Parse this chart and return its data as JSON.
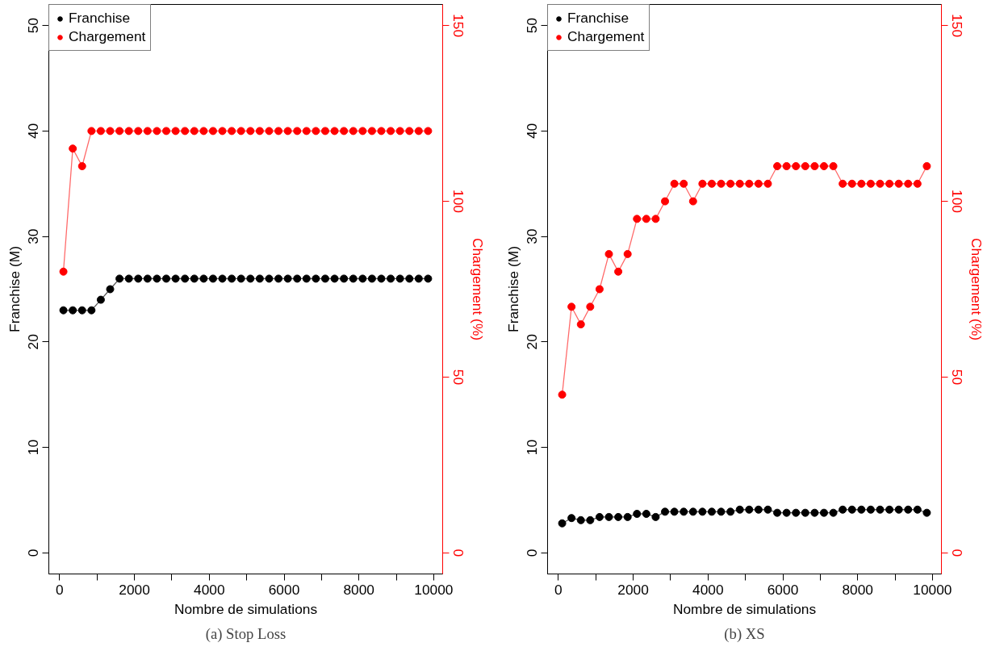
{
  "chart_data": [
    {
      "type": "line",
      "title": "(a) Stop Loss",
      "xlabel": "Nombre de simulations",
      "ylabel": "Franchise (M)",
      "y2label": "Chargement (%)",
      "marker": "circle",
      "legend": "top left",
      "grid": false,
      "x": [
        100,
        350,
        600,
        850,
        1100,
        1350,
        1600,
        1850,
        2100,
        2350,
        2600,
        2850,
        3100,
        3350,
        3600,
        3850,
        4100,
        4350,
        4600,
        4850,
        5100,
        5350,
        5600,
        5850,
        6100,
        6350,
        6600,
        6850,
        7100,
        7350,
        7600,
        7850,
        8100,
        8350,
        8600,
        8850,
        9100,
        9350,
        9600,
        9850
      ],
      "xlim": [
        -290,
        10240
      ],
      "xticks": [
        0,
        {
          "value": 1000,
          "label": null
        },
        2000,
        {
          "value": 3000,
          "label": null
        },
        4000,
        {
          "value": 5000,
          "label": null
        },
        6000,
        {
          "value": 7000,
          "label": null
        },
        8000,
        {
          "value": 9000,
          "label": null
        },
        10000
      ],
      "ylim": [
        -2,
        52
      ],
      "yticks": [
        0,
        10,
        20,
        30,
        40,
        50
      ],
      "y2lim": [
        -6,
        156
      ],
      "y2ticks": [
        0,
        50,
        100,
        150
      ],
      "series": [
        {
          "name": "Franchise",
          "color": "#000000",
          "values": [
            23,
            23,
            23,
            23,
            24,
            25,
            26,
            26,
            26,
            26,
            26,
            26,
            26,
            26,
            26,
            26,
            26,
            26,
            26,
            26,
            26,
            26,
            26,
            26,
            26,
            26,
            26,
            26,
            26,
            26,
            26,
            26,
            26,
            26,
            26,
            26,
            26,
            26,
            26,
            26
          ]
        },
        {
          "name": "Chargement",
          "color": "#ff0000",
          "axis": "y2",
          "values": [
            80,
            115,
            110,
            120,
            120,
            120,
            120,
            120,
            120,
            120,
            120,
            120,
            120,
            120,
            120,
            120,
            120,
            120,
            120,
            120,
            120,
            120,
            120,
            120,
            120,
            120,
            120,
            120,
            120,
            120,
            120,
            120,
            120,
            120,
            120,
            120,
            120,
            120,
            120,
            120
          ]
        }
      ]
    },
    {
      "type": "line",
      "title": "(b) XS",
      "xlabel": "Nombre de simulations",
      "ylabel": "Franchise (M)",
      "y2label": "Chargement (%)",
      "marker": "circle",
      "legend": "top left",
      "grid": false,
      "x": [
        100,
        350,
        600,
        850,
        1100,
        1350,
        1600,
        1850,
        2100,
        2350,
        2600,
        2850,
        3100,
        3350,
        3600,
        3850,
        4100,
        4350,
        4600,
        4850,
        5100,
        5350,
        5600,
        5850,
        6100,
        6350,
        6600,
        6850,
        7100,
        7350,
        7600,
        7850,
        8100,
        8350,
        8600,
        8850,
        9100,
        9350,
        9600,
        9850
      ],
      "xlim": [
        -290,
        10240
      ],
      "xticks": [
        0,
        {
          "value": 1000,
          "label": null
        },
        2000,
        {
          "value": 3000,
          "label": null
        },
        4000,
        {
          "value": 5000,
          "label": null
        },
        6000,
        {
          "value": 7000,
          "label": null
        },
        8000,
        {
          "value": 9000,
          "label": null
        },
        10000
      ],
      "ylim": [
        -2,
        52
      ],
      "yticks": [
        0,
        10,
        20,
        30,
        40,
        50
      ],
      "y2lim": [
        -6,
        156
      ],
      "y2ticks": [
        0,
        50,
        100,
        150
      ],
      "series": [
        {
          "name": "Franchise",
          "color": "#000000",
          "values": [
            2.8,
            3.3,
            3.1,
            3.1,
            3.4,
            3.4,
            3.4,
            3.4,
            3.7,
            3.7,
            3.4,
            3.9,
            3.9,
            3.9,
            3.9,
            3.9,
            3.9,
            3.9,
            3.9,
            4.1,
            4.1,
            4.1,
            4.1,
            3.8,
            3.8,
            3.8,
            3.8,
            3.8,
            3.8,
            3.8,
            4.1,
            4.1,
            4.1,
            4.1,
            4.1,
            4.1,
            4.1,
            4.1,
            4.1,
            3.8
          ]
        },
        {
          "name": "Chargement",
          "color": "#ff0000",
          "axis": "y2",
          "values": [
            45,
            70,
            65,
            70,
            75,
            85,
            80,
            85,
            95,
            95,
            95,
            100,
            105,
            105,
            100,
            105,
            105,
            105,
            105,
            105,
            105,
            105,
            105,
            110,
            110,
            110,
            110,
            110,
            110,
            110,
            105,
            105,
            105,
            105,
            105,
            105,
            105,
            105,
            105,
            110
          ]
        }
      ]
    }
  ]
}
